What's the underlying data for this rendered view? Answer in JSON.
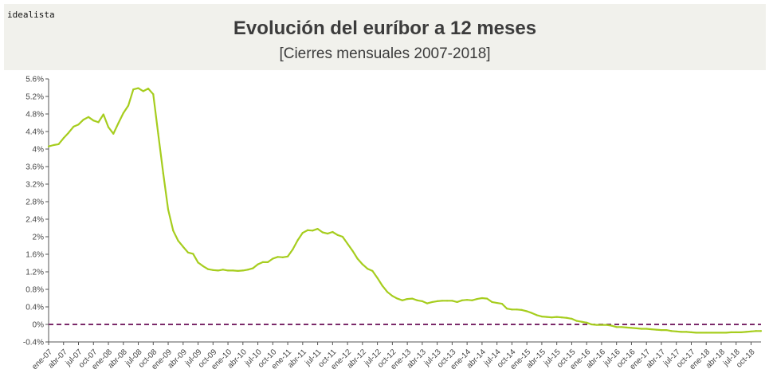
{
  "header": {
    "brand": "idealista",
    "title": "Evolución del euríbor a 12 meses",
    "subtitle": "[Cierres mensuales 2007-2018]"
  },
  "colors": {
    "line": "#a6cd1e",
    "zero_line": "#7b2a6a",
    "background": "#ffffff",
    "header_bg": "#f1f1ec"
  },
  "chart_data": {
    "type": "line",
    "title": "Evolución del euríbor a 12 meses",
    "subtitle": "[Cierres mensuales 2007-2018]",
    "ylim": [
      -0.4,
      5.6
    ],
    "y_ticks": [
      -0.4,
      0,
      0.4,
      0.8,
      1.2,
      1.6,
      2,
      2.4,
      2.8,
      3.2,
      3.6,
      4,
      4.4,
      4.8,
      5.2,
      5.6
    ],
    "y_tick_labels": [
      "-0.4%",
      "0%",
      "0.4%",
      "0.8%",
      "1.2%",
      "1.6%",
      "2%",
      "2.4%",
      "2.8%",
      "3.2%",
      "3.6%",
      "4%",
      "4.4%",
      "4.8%",
      "5.2%",
      "5.6%"
    ],
    "x_tick_labels": [
      "ene-07",
      "abr-07",
      "jul-07",
      "oct-07",
      "ene-08",
      "abr-08",
      "jul-08",
      "oct-08",
      "ene-09",
      "abr-09",
      "jul-09",
      "oct-09",
      "ene-10",
      "abr-10",
      "jul-10",
      "oct-10",
      "ene-11",
      "abr-11",
      "jul-11",
      "oct-11",
      "ene-12",
      "abr-12",
      "jul-12",
      "oct-12",
      "ene-13",
      "abr-13",
      "jul-13",
      "oct-13",
      "ene-14",
      "abr-14",
      "jul-14",
      "oct-14",
      "ene-15",
      "abr-15",
      "jul-15",
      "oct-15",
      "ene-16",
      "abr-16",
      "jul-16",
      "oct-16",
      "ene-17",
      "abr-17",
      "jul-17",
      "oct-17",
      "ene-18",
      "abr-18",
      "jul-18",
      "oct-18"
    ],
    "grid": false,
    "reference_line": 0,
    "series": [
      {
        "values": [
          4.06,
          4.09,
          4.11,
          4.25,
          4.37,
          4.51,
          4.56,
          4.67,
          4.73,
          4.65,
          4.61,
          4.79,
          4.5,
          4.35,
          4.59,
          4.82,
          4.99,
          5.36,
          5.39,
          5.32,
          5.38,
          5.25,
          4.35,
          3.45,
          2.62,
          2.14,
          1.91,
          1.77,
          1.64,
          1.61,
          1.41,
          1.33,
          1.26,
          1.24,
          1.23,
          1.25,
          1.23,
          1.23,
          1.22,
          1.23,
          1.25,
          1.28,
          1.37,
          1.42,
          1.42,
          1.5,
          1.54,
          1.53,
          1.55,
          1.71,
          1.92,
          2.09,
          2.15,
          2.14,
          2.18,
          2.1,
          2.07,
          2.11,
          2.04,
          2.0,
          1.84,
          1.68,
          1.5,
          1.37,
          1.27,
          1.22,
          1.06,
          0.88,
          0.74,
          0.65,
          0.59,
          0.55,
          0.58,
          0.59,
          0.55,
          0.53,
          0.48,
          0.51,
          0.53,
          0.54,
          0.54,
          0.54,
          0.51,
          0.55,
          0.56,
          0.55,
          0.58,
          0.6,
          0.59,
          0.51,
          0.49,
          0.47,
          0.36,
          0.34,
          0.34,
          0.33,
          0.3,
          0.26,
          0.21,
          0.18,
          0.17,
          0.16,
          0.17,
          0.16,
          0.15,
          0.13,
          0.08,
          0.06,
          0.04,
          0.0,
          -0.01,
          -0.01,
          -0.01,
          -0.03,
          -0.06,
          -0.06,
          -0.07,
          -0.08,
          -0.09,
          -0.1,
          -0.1,
          -0.11,
          -0.12,
          -0.13,
          -0.13,
          -0.15,
          -0.16,
          -0.17,
          -0.17,
          -0.18,
          -0.19,
          -0.19,
          -0.19,
          -0.19,
          -0.19,
          -0.19,
          -0.19,
          -0.18,
          -0.18,
          -0.18,
          -0.17,
          -0.16,
          -0.15,
          -0.15
        ]
      }
    ]
  }
}
